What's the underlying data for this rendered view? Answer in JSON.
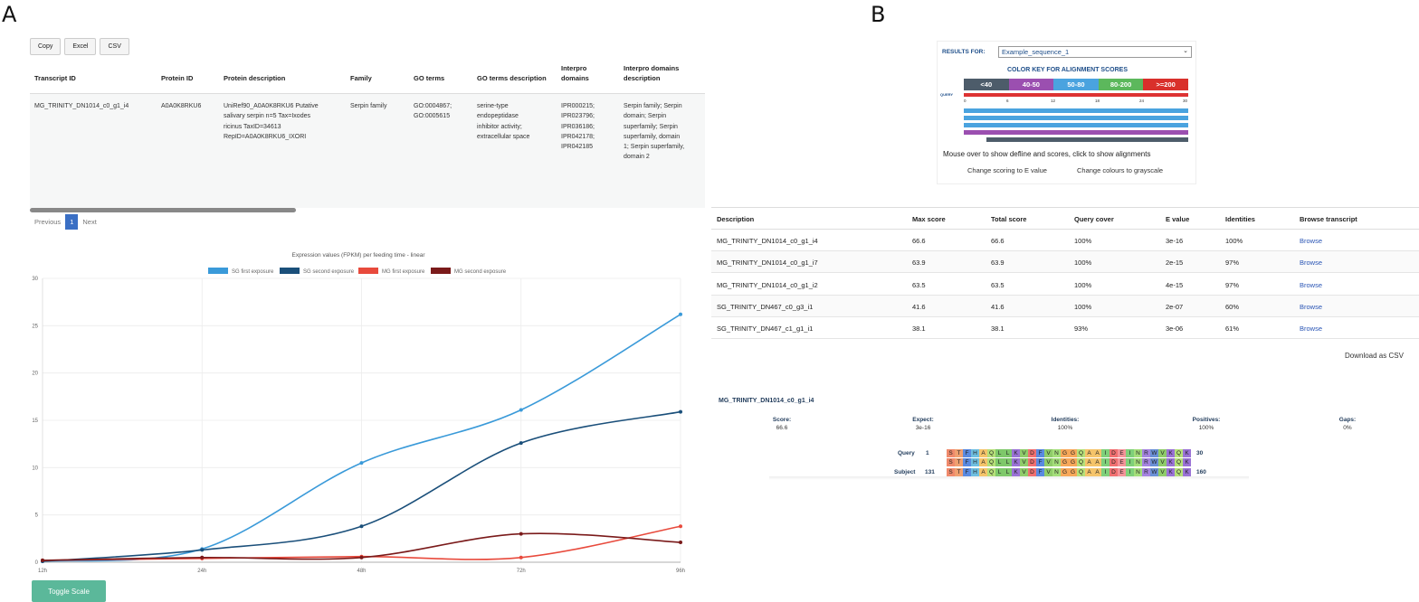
{
  "panels": {
    "a": "A",
    "b": "B"
  },
  "export_buttons": [
    "Copy",
    "Excel",
    "CSV"
  ],
  "transcript_table": {
    "headers": [
      "Transcript ID",
      "Protein ID",
      "Protein description",
      "Family",
      "GO terms",
      "GO terms description",
      "Interpro domains",
      "Interpro domains description"
    ],
    "row": {
      "transcript_id": "MG_TRINITY_DN1014_c0_g1_i4",
      "protein_id": "A0A0K8RKU6",
      "protein_description": [
        "UniRef90_A0A0K8RKU6 Putative",
        "salivary serpin n=5 Tax=Ixodes",
        "ricinus TaxID=34613",
        "RepID=A0A0K8RKU6_IXORI"
      ],
      "family": "Serpin family",
      "go_terms": [
        "GO:0004867;",
        "GO:0005615"
      ],
      "go_terms_description": [
        "serine-type",
        "endopeptidase",
        "inhibitor activity;",
        "extracellular space"
      ],
      "interpro_domains": [
        "IPR000215;",
        "IPR023796;",
        "IPR036186;",
        "IPR042178;",
        "IPR042185"
      ],
      "interpro_description": [
        "Serpin family; Serpin",
        "domain; Serpin",
        "superfamily; Serpin",
        "superfamily, domain",
        "1; Serpin superfamily,",
        "domain 2"
      ]
    }
  },
  "pagination": {
    "previous": "Previous",
    "current": "1",
    "next": "Next"
  },
  "toggle_label": "Toggle Scale",
  "chart_data": {
    "type": "line",
    "title": "Expression values (FPKM) per feeding time - linear",
    "categories": [
      "12h",
      "24h",
      "48h",
      "72h",
      "96h"
    ],
    "ylim": [
      0,
      30
    ],
    "yticks": [
      0,
      5,
      10,
      15,
      20,
      25,
      30
    ],
    "series": [
      {
        "name": "SG first exposure",
        "color": "#3a9ad9",
        "values": [
          0.1,
          1.4,
          10.5,
          16.1,
          26.2
        ]
      },
      {
        "name": "SG second exposure",
        "color": "#1a4f7a",
        "values": [
          0.1,
          1.3,
          3.8,
          12.6,
          15.9
        ]
      },
      {
        "name": "MG first exposure",
        "color": "#e84a3c",
        "values": [
          0.2,
          0.4,
          0.6,
          0.5,
          3.8
        ]
      },
      {
        "name": "MG second exposure",
        "color": "#7a1a1a",
        "values": [
          0.2,
          0.5,
          0.5,
          3.0,
          2.1
        ]
      }
    ]
  },
  "blast": {
    "results_for_label": "RESULTS FOR:",
    "selected_sequence": "Example_sequence_1",
    "color_key_title": "COLOR KEY FOR ALIGNMENT SCORES",
    "color_key": [
      {
        "label": "<40",
        "color": "#4d5c6a"
      },
      {
        "label": "40-50",
        "color": "#9b4fb0"
      },
      {
        "label": "50-80",
        "color": "#4aa3df"
      },
      {
        "label": "80-200",
        "color": "#5cb85c"
      },
      {
        "label": ">=200",
        "color": "#d9302b"
      }
    ],
    "query_label": "QUERY",
    "ticks": [
      "0",
      "6",
      "12",
      "18",
      "24",
      "30"
    ],
    "hint": "Mouse over to show defline and scores, click to show alignments",
    "change_scoring": "Change scoring to E value",
    "change_colours": "Change colours to grayscale"
  },
  "hits_table": {
    "headers": [
      "Description",
      "Max score",
      "Total score",
      "Query cover",
      "E value",
      "Identities",
      "Browse transcript"
    ],
    "rows": [
      [
        "MG_TRINITY_DN1014_c0_g1_i4",
        "66.6",
        "66.6",
        "100%",
        "3e-16",
        "100%",
        "Browse"
      ],
      [
        "MG_TRINITY_DN1014_c0_g1_i7",
        "63.9",
        "63.9",
        "100%",
        "2e-15",
        "97%",
        "Browse"
      ],
      [
        "MG_TRINITY_DN1014_c0_g1_i2",
        "63.5",
        "63.5",
        "100%",
        "4e-15",
        "97%",
        "Browse"
      ],
      [
        "SG_TRINITY_DN467_c0_g3_i1",
        "41.6",
        "41.6",
        "100%",
        "2e-07",
        "60%",
        "Browse"
      ],
      [
        "SG_TRINITY_DN467_c1_g1_i1",
        "38.1",
        "38.1",
        "93%",
        "3e-06",
        "61%",
        "Browse"
      ]
    ]
  },
  "download_csv": "Download as CSV",
  "alignment": {
    "title": "MG_TRINITY_DN1014_c0_g1_i4",
    "stats": [
      {
        "k": "Score:",
        "v": "66.6"
      },
      {
        "k": "Expect:",
        "v": "3e-16"
      },
      {
        "k": "Identities:",
        "v": "100%"
      },
      {
        "k": "Positives:",
        "v": "100%"
      },
      {
        "k": "Gaps:",
        "v": "0%"
      }
    ],
    "query_label": "Query",
    "query_start": "1",
    "query_end": "30",
    "subject_label": "Subject",
    "subject_start": "131",
    "subject_end": "160",
    "sequence": "STFHAQLLKVDFVNGGQAAIDEINRWVKQK"
  }
}
